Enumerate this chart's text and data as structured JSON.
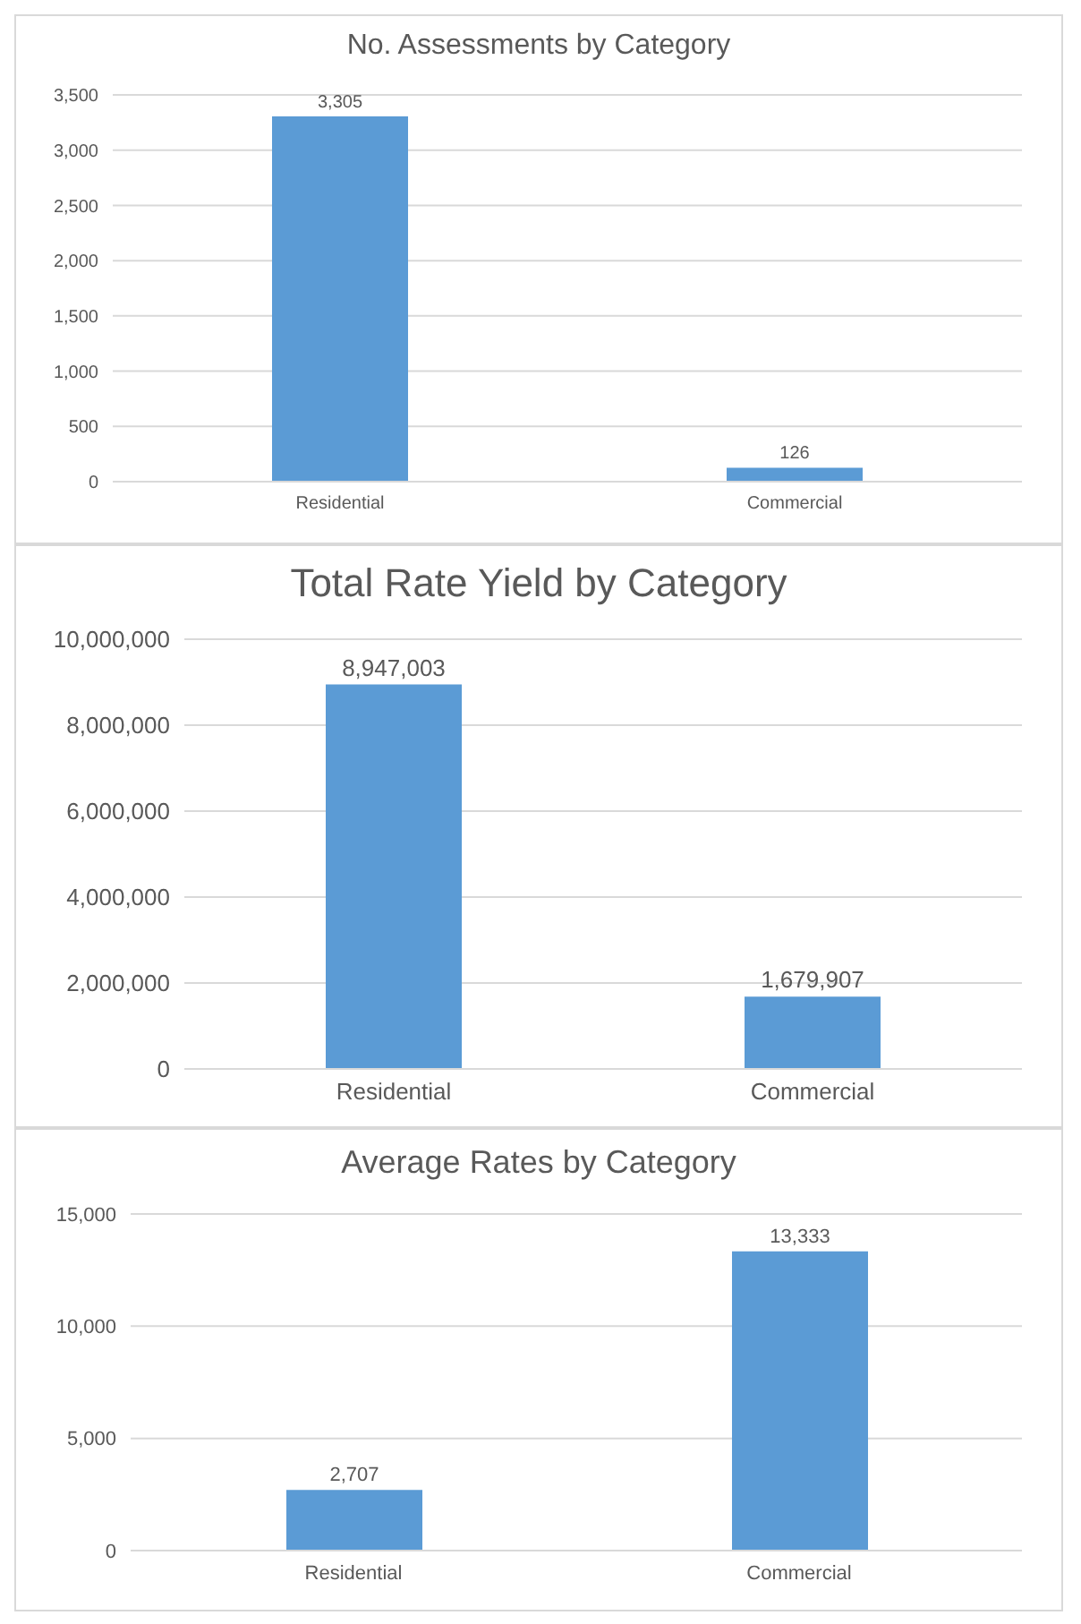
{
  "chart_data": [
    {
      "type": "bar",
      "title": "No. Assessments by Category",
      "categories": [
        "Residential",
        "Commercial"
      ],
      "values": [
        3305,
        126
      ],
      "value_labels": [
        "3,305",
        "126"
      ],
      "color": "#5b9bd5",
      "ylim": [
        0,
        3500
      ],
      "yticks": [
        {
          "value": 0,
          "label": "0"
        },
        {
          "value": 500,
          "label": "500"
        },
        {
          "value": 1000,
          "label": "1,000"
        },
        {
          "value": 1500,
          "label": "1,500"
        },
        {
          "value": 2000,
          "label": "2,000"
        },
        {
          "value": 2500,
          "label": "2,500"
        },
        {
          "value": 3000,
          "label": "3,000"
        },
        {
          "value": 3500,
          "label": "3,500"
        }
      ],
      "grid": "y"
    },
    {
      "type": "bar",
      "title": "Total Rate Yield by Category",
      "categories": [
        "Residential",
        "Commercial"
      ],
      "values": [
        8947003,
        1679907
      ],
      "value_labels": [
        "8,947,003",
        "1,679,907"
      ],
      "color": "#5b9bd5",
      "ylim": [
        0,
        10000000
      ],
      "yticks": [
        {
          "value": 0,
          "label": "0"
        },
        {
          "value": 2000000,
          "label": "2,000,000"
        },
        {
          "value": 4000000,
          "label": "4,000,000"
        },
        {
          "value": 6000000,
          "label": "6,000,000"
        },
        {
          "value": 8000000,
          "label": "8,000,000"
        },
        {
          "value": 10000000,
          "label": "10,000,000"
        }
      ],
      "grid": "y"
    },
    {
      "type": "bar",
      "title": "Average Rates by Category",
      "categories": [
        "Residential",
        "Commercial"
      ],
      "values": [
        2707,
        13333
      ],
      "value_labels": [
        "2,707",
        "13,333"
      ],
      "color": "#5b9bd5",
      "ylim": [
        0,
        15000
      ],
      "yticks": [
        {
          "value": 0,
          "label": "0"
        },
        {
          "value": 5000,
          "label": "5,000"
        },
        {
          "value": 10000,
          "label": "10,000"
        },
        {
          "value": 15000,
          "label": "15,000"
        }
      ],
      "grid": "y"
    }
  ]
}
